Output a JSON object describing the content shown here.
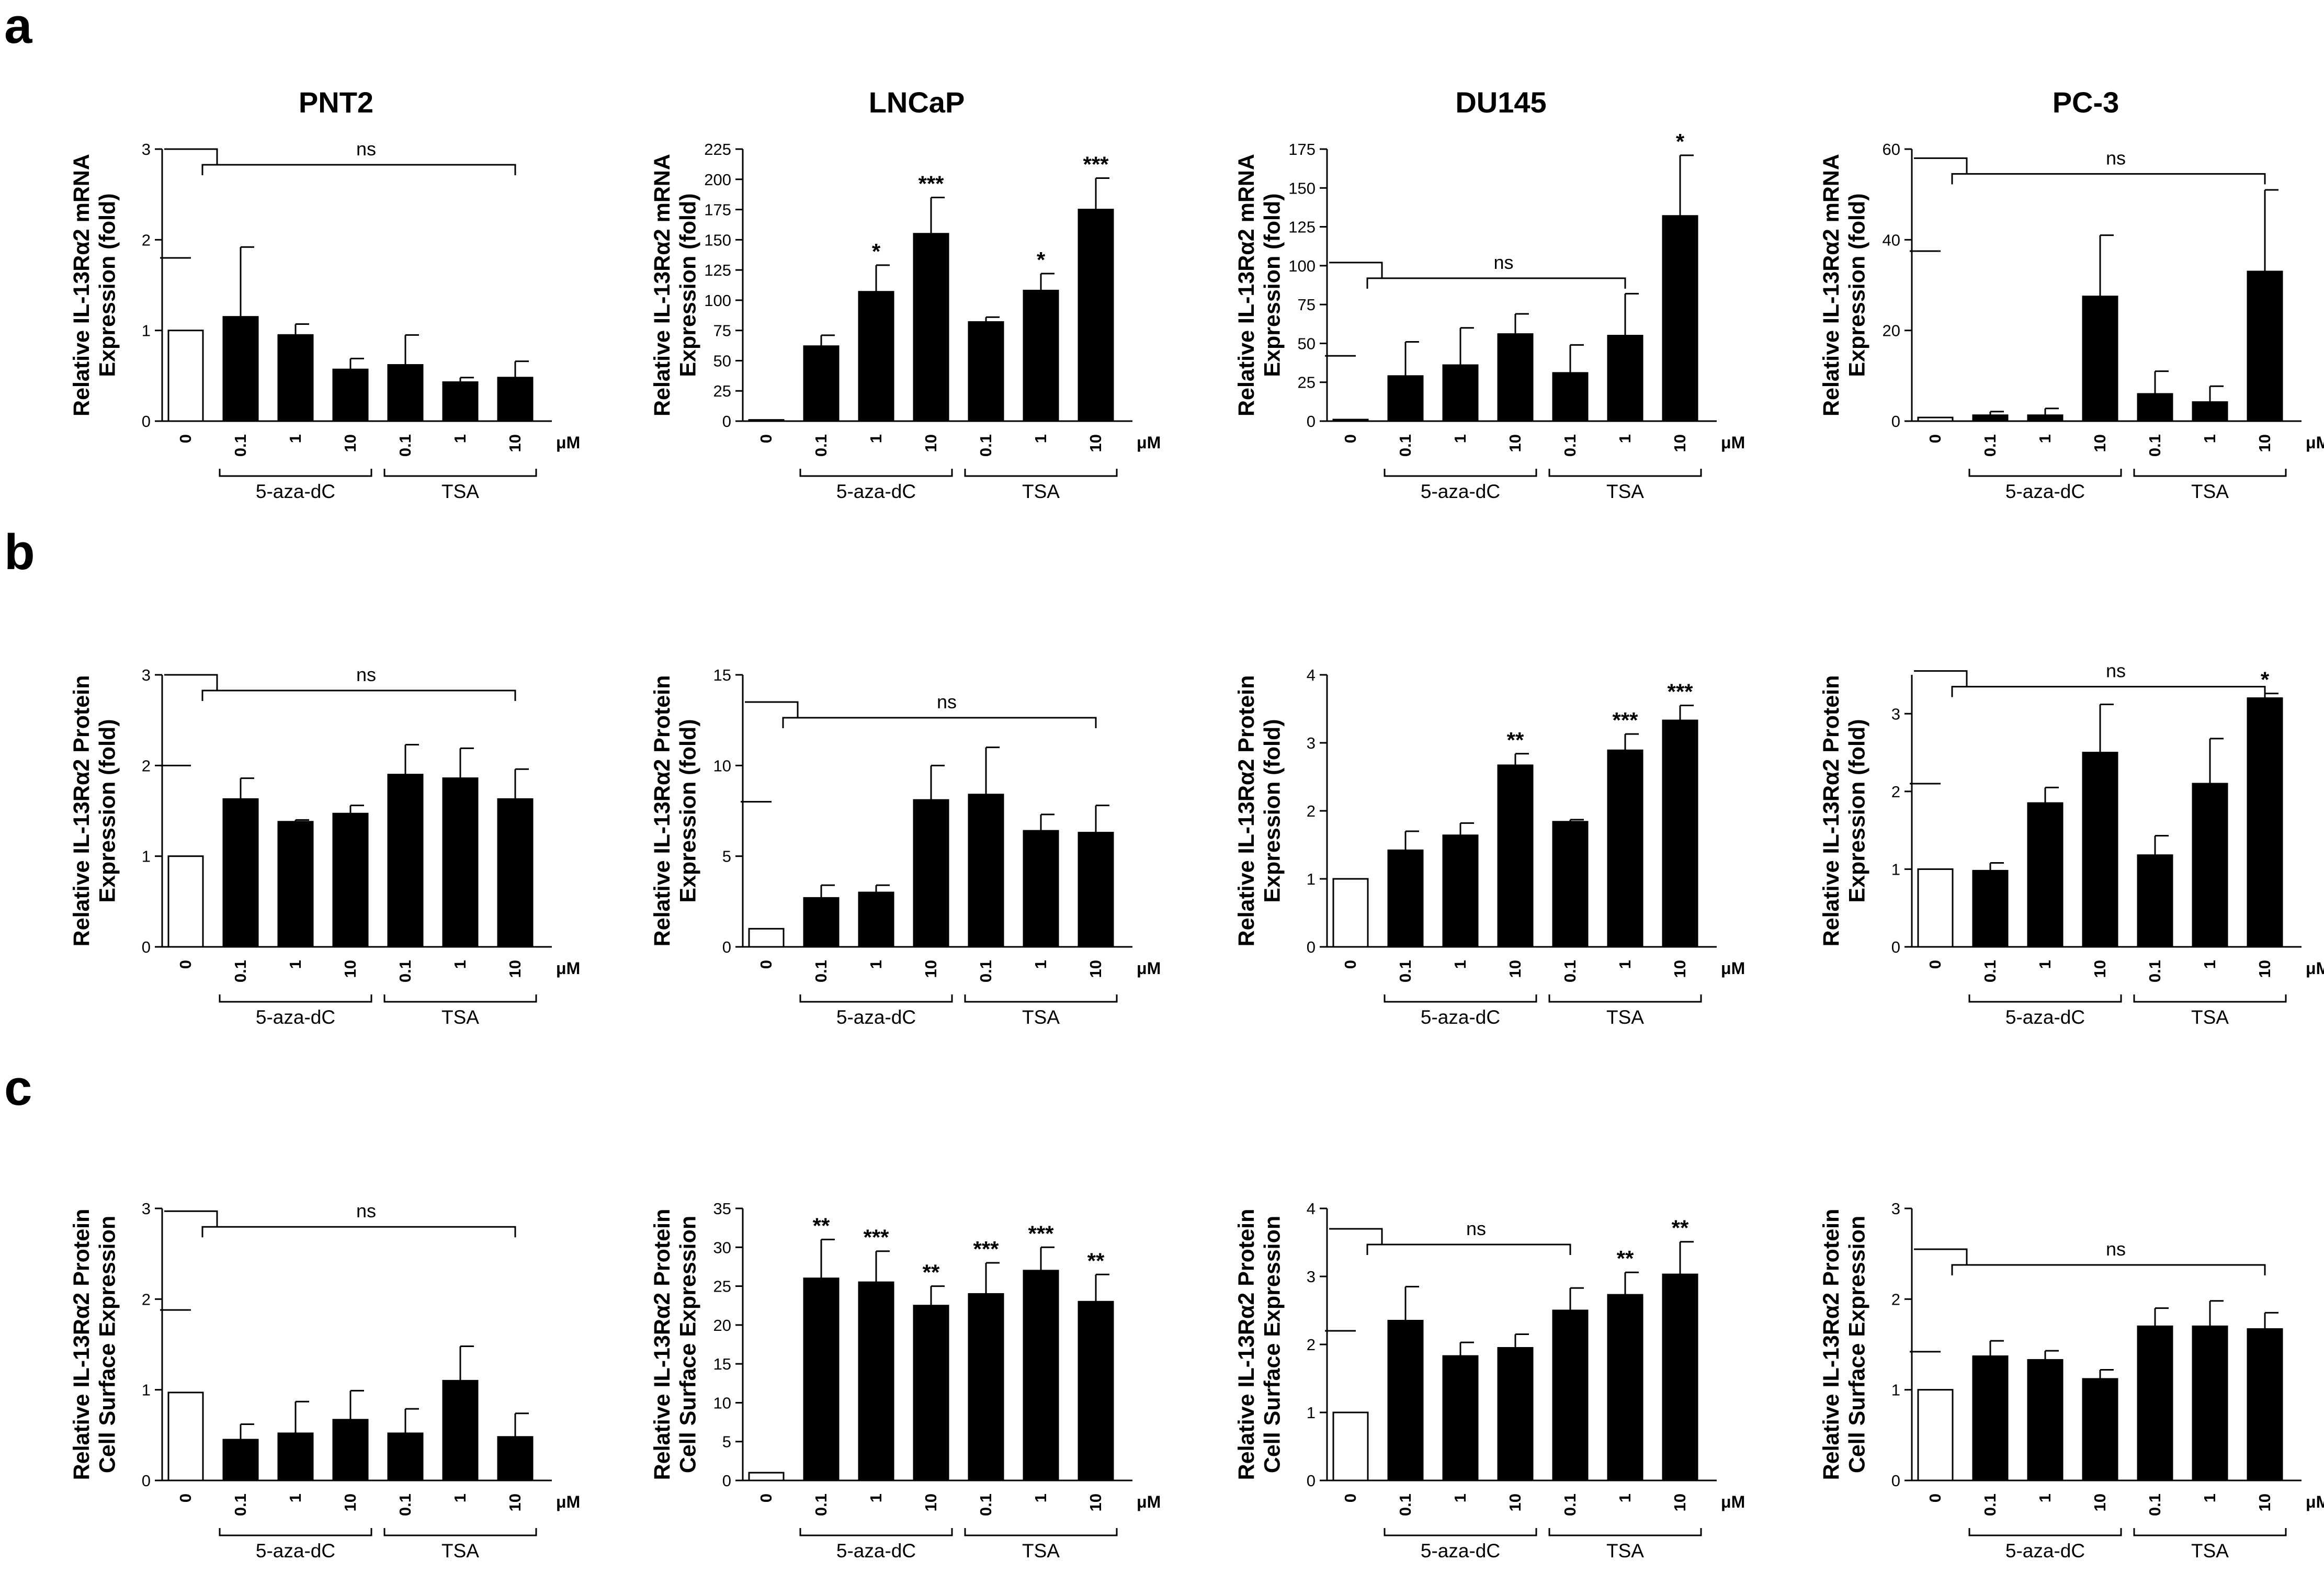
{
  "panels": [
    "a",
    "b",
    "c"
  ],
  "chart_data": [
    {
      "type": "bar",
      "row": "a",
      "col": 0,
      "title": "PNT2",
      "ylabel": [
        "Relative IL-13Rα2 mRNA",
        "Expression (fold)"
      ],
      "categories": [
        "0",
        "0.1",
        "1",
        "10",
        "0.1",
        "1",
        "10"
      ],
      "unit": "μM",
      "groups": [
        "5-aza-dC",
        "TSA"
      ],
      "ylim": [
        0,
        3
      ],
      "yticks": [
        "0",
        "1",
        "2",
        "3"
      ],
      "values": [
        1.0,
        1.15,
        0.95,
        0.57,
        0.62,
        0.43,
        0.48
      ],
      "errors": [
        0,
        0.77,
        0.12,
        0.12,
        0.33,
        0.05,
        0.18
      ],
      "fills": [
        "white",
        "black",
        "black",
        "black",
        "black",
        "black",
        "black"
      ],
      "sig": [
        "",
        "",
        "",
        "",
        "",
        "",
        ""
      ],
      "bracket": {
        "label": "ns",
        "top": 3.0,
        "right_end": 6,
        "left_y": 1.8
      }
    },
    {
      "type": "bar",
      "row": "a",
      "col": 1,
      "title": "LNCaP",
      "ylabel": [
        "Relative IL-13Rα2 mRNA",
        "Expression (fold)"
      ],
      "categories": [
        "0",
        "0.1",
        "1",
        "10",
        "0.1",
        "1",
        "10"
      ],
      "unit": "μM",
      "groups": [
        "5-aza-dC",
        "TSA"
      ],
      "ylim": [
        0,
        225
      ],
      "yticks": [
        "0",
        "25",
        "50",
        "75",
        "100",
        "125",
        "150",
        "175",
        "200",
        "225"
      ],
      "values": [
        1,
        62,
        107,
        155,
        82,
        108,
        175
      ],
      "errors": [
        0,
        9,
        22,
        30,
        4,
        14,
        26
      ],
      "fills": [
        "white",
        "black",
        "black",
        "black",
        "black",
        "black",
        "black"
      ],
      "sig": [
        "",
        "",
        "*",
        "***",
        "",
        "*",
        "***"
      ],
      "bracket": null
    },
    {
      "type": "bar",
      "row": "a",
      "col": 2,
      "title": "DU145",
      "ylabel": [
        "Relative IL-13Rα2 mRNA",
        "Expression (fold)"
      ],
      "categories": [
        "0",
        "0.1",
        "1",
        "10",
        "0.1",
        "1",
        "10"
      ],
      "unit": "μM",
      "groups": [
        "5-aza-dC",
        "TSA"
      ],
      "ylim": [
        0,
        175
      ],
      "yticks": [
        "0",
        "25",
        "50",
        "75",
        "100",
        "125",
        "150",
        "175"
      ],
      "values": [
        1,
        29,
        36,
        56,
        31,
        55,
        132
      ],
      "errors": [
        0,
        22,
        24,
        13,
        18,
        27,
        39
      ],
      "fills": [
        "white",
        "black",
        "black",
        "black",
        "black",
        "black",
        "black"
      ],
      "sig": [
        "",
        "",
        "",
        "",
        "",
        "",
        "*"
      ],
      "bracket": {
        "label": "ns",
        "top": 102,
        "right_end": 5,
        "left_y": 42
      }
    },
    {
      "type": "bar",
      "row": "a",
      "col": 3,
      "title": "PC-3",
      "ylabel": [
        "Relative IL-13Rα2 mRNA",
        "Expression (fold)"
      ],
      "categories": [
        "0",
        "0.1",
        "1",
        "10",
        "0.1",
        "1",
        "10"
      ],
      "unit": "μM",
      "groups": [
        "5-aza-dC",
        "TSA"
      ],
      "ylim": [
        0,
        60
      ],
      "yticks": [
        "0",
        "20",
        "40",
        "60"
      ],
      "values": [
        0.8,
        1.3,
        1.3,
        27.5,
        6,
        4.2,
        33
      ],
      "errors": [
        0,
        0.8,
        1.5,
        13.5,
        5,
        3.5,
        18
      ],
      "fills": [
        "white",
        "black",
        "black",
        "black",
        "black",
        "black",
        "black"
      ],
      "sig": [
        "",
        "",
        "",
        "",
        "",
        "",
        ""
      ],
      "bracket": {
        "label": "ns",
        "top": 58,
        "right_end": 6,
        "left_y": 37.5
      }
    },
    {
      "type": "bar",
      "row": "b",
      "col": 0,
      "title": "",
      "ylabel": [
        "Relative IL-13Rα2 Protein",
        "Expression (fold)"
      ],
      "categories": [
        "0",
        "0.1",
        "1",
        "10",
        "0.1",
        "1",
        "10"
      ],
      "unit": "μM",
      "groups": [
        "5-aza-dC",
        "TSA"
      ],
      "ylim": [
        0,
        3
      ],
      "yticks": [
        "0",
        "1",
        "2",
        "3"
      ],
      "values": [
        1.0,
        1.63,
        1.38,
        1.47,
        1.9,
        1.86,
        1.63
      ],
      "errors": [
        0,
        0.23,
        0.02,
        0.09,
        0.33,
        0.33,
        0.33
      ],
      "fills": [
        "white",
        "black",
        "black",
        "black",
        "black",
        "black",
        "black"
      ],
      "sig": [
        "",
        "",
        "",
        "",
        "",
        "",
        ""
      ],
      "bracket": {
        "label": "ns",
        "top": 3.0,
        "right_end": 6,
        "left_y": 2.0
      }
    },
    {
      "type": "bar",
      "row": "b",
      "col": 1,
      "title": "",
      "ylabel": [
        "Relative IL-13Rα2 Protein",
        "Expression (fold)"
      ],
      "categories": [
        "0",
        "0.1",
        "1",
        "10",
        "0.1",
        "1",
        "10"
      ],
      "unit": "μM",
      "groups": [
        "5-aza-dC",
        "TSA"
      ],
      "ylim": [
        0,
        15
      ],
      "yticks": [
        "0",
        "5",
        "10",
        "15"
      ],
      "values": [
        1.0,
        2.7,
        3.0,
        8.1,
        8.4,
        6.4,
        6.3
      ],
      "errors": [
        0,
        0.7,
        0.4,
        1.9,
        2.6,
        0.9,
        1.5
      ],
      "fills": [
        "white",
        "black",
        "black",
        "black",
        "black",
        "black",
        "black"
      ],
      "sig": [
        "",
        "",
        "",
        "",
        "",
        "",
        ""
      ],
      "bracket": {
        "label": "ns",
        "top": 13.5,
        "right_end": 6,
        "left_y": 8.0
      }
    },
    {
      "type": "bar",
      "row": "b",
      "col": 2,
      "title": "",
      "ylabel": [
        "Relative IL-13Rα2 Protein",
        "Expression (fold)"
      ],
      "categories": [
        "0",
        "0.1",
        "1",
        "10",
        "0.1",
        "1",
        "10"
      ],
      "unit": "μM",
      "groups": [
        "5-aza-dC",
        "TSA"
      ],
      "ylim": [
        0,
        4
      ],
      "yticks": [
        "0",
        "1",
        "2",
        "3",
        "4"
      ],
      "values": [
        1.0,
        1.42,
        1.64,
        2.67,
        1.84,
        2.89,
        3.33
      ],
      "errors": [
        0,
        0.28,
        0.18,
        0.17,
        0.03,
        0.24,
        0.22
      ],
      "fills": [
        "white",
        "black",
        "black",
        "black",
        "black",
        "black",
        "black"
      ],
      "sig": [
        "",
        "",
        "",
        "**",
        "",
        "***",
        "***"
      ],
      "bracket": null
    },
    {
      "type": "bar",
      "row": "b",
      "col": 3,
      "title": "",
      "ylabel": [
        "Relative IL-13Rα2 Protein",
        "Expression (fold)"
      ],
      "categories": [
        "0",
        "0.1",
        "1",
        "10",
        "0.1",
        "1",
        "10"
      ],
      "unit": "μM",
      "groups": [
        "5-aza-dC",
        "TSA"
      ],
      "ylim": [
        0,
        3.5
      ],
      "yticks": [
        "0",
        "1",
        "2",
        "3"
      ],
      "values": [
        1.0,
        0.98,
        1.85,
        2.5,
        1.18,
        2.1,
        3.2
      ],
      "errors": [
        0,
        0.1,
        0.2,
        0.62,
        0.25,
        0.58,
        0.06
      ],
      "fills": [
        "white",
        "black",
        "black",
        "black",
        "black",
        "black",
        "black"
      ],
      "sig": [
        "",
        "",
        "",
        "",
        "",
        "",
        "*"
      ],
      "bracket": {
        "label": "ns",
        "top": 3.55,
        "right_end": 6,
        "left_y": 2.1
      }
    },
    {
      "type": "bar",
      "row": "c",
      "col": 0,
      "title": "",
      "ylabel": [
        "Relative IL-13Rα2 Protein",
        "Cell Surface Expression"
      ],
      "categories": [
        "0",
        "0.1",
        "1",
        "10",
        "0.1",
        "1",
        "10"
      ],
      "unit": "μM",
      "groups": [
        "5-aza-dC",
        "TSA"
      ],
      "ylim": [
        0,
        3
      ],
      "yticks": [
        "0",
        "1",
        "2",
        "3"
      ],
      "values": [
        0.97,
        0.45,
        0.52,
        0.67,
        0.52,
        1.1,
        0.48
      ],
      "errors": [
        0,
        0.17,
        0.35,
        0.32,
        0.27,
        0.38,
        0.26
      ],
      "fills": [
        "white",
        "black",
        "black",
        "black",
        "black",
        "black",
        "black"
      ],
      "sig": [
        "",
        "",
        "",
        "",
        "",
        "",
        ""
      ],
      "bracket": {
        "label": "ns",
        "top": 2.97,
        "right_end": 6,
        "left_y": 1.88
      }
    },
    {
      "type": "bar",
      "row": "c",
      "col": 1,
      "title": "",
      "ylabel": [
        "Relative IL-13Rα2 Protein",
        "Cell Surface Expression"
      ],
      "categories": [
        "0",
        "0.1",
        "1",
        "10",
        "0.1",
        "1",
        "10"
      ],
      "unit": "μM",
      "groups": [
        "5-aza-dC",
        "TSA"
      ],
      "ylim": [
        0,
        35
      ],
      "yticks": [
        "0",
        "5",
        "10",
        "15",
        "20",
        "25",
        "30",
        "35"
      ],
      "values": [
        1,
        26,
        25.5,
        22.5,
        24,
        27,
        23
      ],
      "errors": [
        0,
        5,
        4,
        2.5,
        4,
        3,
        3.5
      ],
      "fills": [
        "white",
        "black",
        "black",
        "black",
        "black",
        "black",
        "black"
      ],
      "sig": [
        "",
        "**",
        "***",
        "**",
        "***",
        "***",
        "**"
      ],
      "bracket": null
    },
    {
      "type": "bar",
      "row": "c",
      "col": 2,
      "title": "",
      "ylabel": [
        "Relative IL-13Rα2 Protein",
        "Cell Surface Expression"
      ],
      "categories": [
        "0",
        "0.1",
        "1",
        "10",
        "0.1",
        "1",
        "10"
      ],
      "unit": "μM",
      "groups": [
        "5-aza-dC",
        "TSA"
      ],
      "ylim": [
        0,
        4
      ],
      "yticks": [
        "0",
        "1",
        "2",
        "3",
        "4"
      ],
      "values": [
        1.0,
        2.35,
        1.83,
        1.95,
        2.5,
        2.73,
        3.03
      ],
      "errors": [
        0,
        0.5,
        0.2,
        0.2,
        0.33,
        0.33,
        0.48
      ],
      "fills": [
        "white",
        "black",
        "black",
        "black",
        "black",
        "black",
        "black"
      ],
      "sig": [
        "",
        "",
        "",
        "",
        "",
        "**",
        "**"
      ],
      "bracket": {
        "label": "ns",
        "top": 3.7,
        "right_end": 4,
        "left_y": 2.2
      }
    },
    {
      "type": "bar",
      "row": "c",
      "col": 3,
      "title": "",
      "ylabel": [
        "Relative IL-13Rα2 Protein",
        "Cell Surface Expression"
      ],
      "categories": [
        "0",
        "0.1",
        "1",
        "10",
        "0.1",
        "1",
        "10"
      ],
      "unit": "μM",
      "groups": [
        "5-aza-dC",
        "TSA"
      ],
      "ylim": [
        0,
        3
      ],
      "yticks": [
        "0",
        "1",
        "2",
        "3"
      ],
      "values": [
        1.0,
        1.37,
        1.33,
        1.12,
        1.7,
        1.7,
        1.67
      ],
      "errors": [
        0,
        0.17,
        0.1,
        0.1,
        0.2,
        0.28,
        0.18
      ],
      "fills": [
        "white",
        "black",
        "black",
        "black",
        "black",
        "black",
        "black"
      ],
      "sig": [
        "",
        "",
        "",
        "",
        "",
        "",
        ""
      ],
      "bracket": {
        "label": "ns",
        "top": 2.55,
        "right_end": 6,
        "left_y": 1.42
      }
    }
  ]
}
